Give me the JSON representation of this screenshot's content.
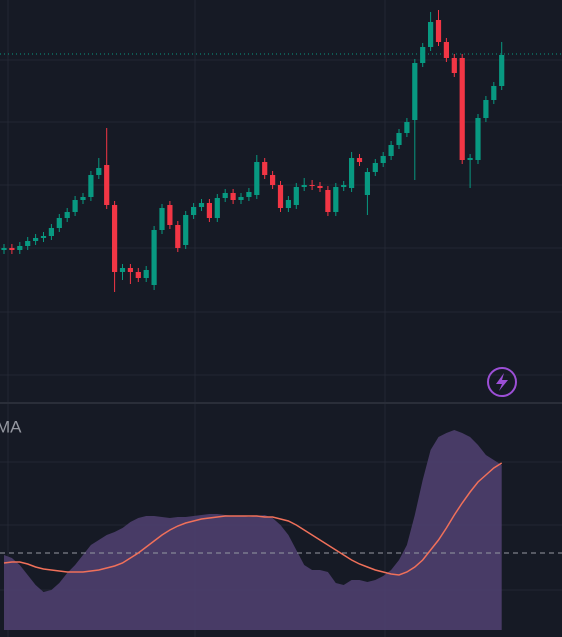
{
  "chart_data": {
    "type": "candlestick",
    "ylim": [
      0,
      400
    ],
    "last_price_line": 346,
    "up_color": "#089981",
    "down_color": "#f23645",
    "candles": [
      [
        150,
        156,
        146,
        152
      ],
      [
        152,
        156,
        146,
        150
      ],
      [
        150,
        158,
        146,
        154
      ],
      [
        154,
        163,
        150,
        159
      ],
      [
        159,
        166,
        155,
        162
      ],
      [
        162,
        168,
        158,
        164
      ],
      [
        164,
        176,
        160,
        172
      ],
      [
        172,
        186,
        168,
        182
      ],
      [
        182,
        192,
        178,
        188
      ],
      [
        188,
        204,
        184,
        200
      ],
      [
        200,
        207,
        196,
        203
      ],
      [
        203,
        229,
        199,
        225
      ],
      [
        225,
        242,
        221,
        232
      ],
      [
        235,
        272,
        191,
        195
      ],
      [
        195,
        199,
        108,
        128
      ],
      [
        128,
        136,
        120,
        132
      ],
      [
        132,
        136,
        116,
        128
      ],
      [
        128,
        132,
        118,
        122
      ],
      [
        122,
        134,
        118,
        130
      ],
      [
        115,
        174,
        110,
        170
      ],
      [
        170,
        196,
        166,
        192
      ],
      [
        195,
        199,
        171,
        175
      ],
      [
        175,
        179,
        148,
        152
      ],
      [
        155,
        189,
        151,
        185
      ],
      [
        185,
        197,
        181,
        193
      ],
      [
        193,
        201,
        189,
        197
      ],
      [
        197,
        201,
        178,
        182
      ],
      [
        182,
        206,
        178,
        202
      ],
      [
        202,
        211,
        198,
        207
      ],
      [
        207,
        211,
        196,
        200
      ],
      [
        200,
        207,
        196,
        203
      ],
      [
        203,
        212,
        199,
        208
      ],
      [
        205,
        245,
        201,
        238
      ],
      [
        238,
        242,
        221,
        225
      ],
      [
        225,
        229,
        211,
        215
      ],
      [
        215,
        219,
        188,
        192
      ],
      [
        192,
        204,
        188,
        200
      ],
      [
        195,
        217,
        191,
        213
      ],
      [
        213,
        222,
        209,
        215
      ],
      [
        215,
        220,
        210,
        214
      ],
      [
        214,
        218,
        208,
        212
      ],
      [
        210,
        214,
        184,
        188
      ],
      [
        188,
        217,
        184,
        213
      ],
      [
        213,
        219,
        209,
        215
      ],
      [
        212,
        248,
        208,
        242
      ],
      [
        242,
        246,
        234,
        238
      ],
      [
        205,
        232,
        185,
        228
      ],
      [
        228,
        241,
        224,
        237
      ],
      [
        237,
        248,
        233,
        244
      ],
      [
        244,
        259,
        240,
        255
      ],
      [
        255,
        271,
        251,
        267
      ],
      [
        267,
        282,
        263,
        278
      ],
      [
        280,
        341,
        220,
        337
      ],
      [
        337,
        357,
        333,
        353
      ],
      [
        353,
        388,
        349,
        378
      ],
      [
        380,
        390,
        354,
        358
      ],
      [
        358,
        362,
        338,
        342
      ],
      [
        342,
        346,
        323,
        327
      ],
      [
        342,
        346,
        236,
        240
      ],
      [
        240,
        246,
        212,
        242
      ],
      [
        240,
        286,
        236,
        282
      ],
      [
        282,
        304,
        278,
        300
      ],
      [
        300,
        318,
        296,
        314
      ],
      [
        314,
        358,
        310,
        345
      ]
    ],
    "indicator": {
      "label": "MA",
      "ylim": [
        0,
        230
      ],
      "reference_line": 77,
      "area_color": "#4e3f6e",
      "line_color": "#f0705a",
      "area_values": [
        75,
        72,
        65,
        55,
        45,
        38,
        40,
        47,
        57,
        65,
        75,
        85,
        90,
        95,
        98,
        102,
        108,
        112,
        114,
        114,
        113,
        112,
        113,
        113,
        114,
        115,
        116,
        116,
        115,
        114,
        114,
        113,
        114,
        115,
        112,
        105,
        95,
        80,
        65,
        60,
        60,
        58,
        47,
        45,
        50,
        50,
        48,
        50,
        54,
        60,
        70,
        85,
        115,
        150,
        180,
        193,
        197,
        200,
        197,
        193,
        185,
        175,
        170,
        165
      ],
      "ma_values": [
        67,
        68,
        68,
        66,
        63,
        61,
        60,
        59,
        58,
        58,
        58,
        59,
        60,
        62,
        64,
        67,
        72,
        77,
        83,
        89,
        95,
        100,
        104,
        107,
        109,
        111,
        112,
        113,
        114,
        114,
        114,
        114,
        114,
        113,
        113,
        111,
        109,
        105,
        100,
        95,
        90,
        85,
        80,
        75,
        70,
        66,
        63,
        60,
        58,
        56,
        55,
        58,
        63,
        70,
        80,
        90,
        102,
        115,
        127,
        138,
        148,
        155,
        162,
        167
      ]
    }
  }
}
